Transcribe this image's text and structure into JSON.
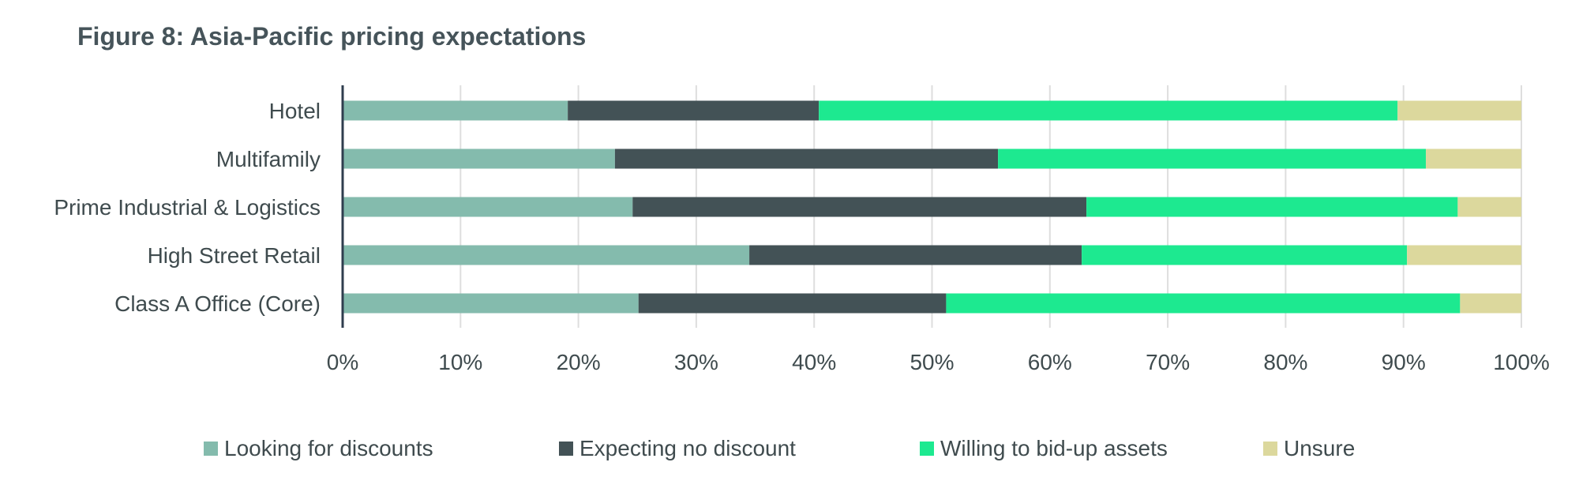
{
  "chart_data": {
    "type": "bar",
    "orientation": "horizontal",
    "stacked": "percent",
    "title": "Figure 8: Asia-Pacific pricing expectations",
    "categories": [
      "Hotel",
      "Multifamily",
      "Prime Industrial & Logistics",
      "High Street Retail",
      "Class A Office (Core)"
    ],
    "series": [
      {
        "name": "Looking for discounts",
        "color": "#84bbad",
        "values": [
          19.1,
          23.1,
          24.6,
          34.5,
          25.1
        ]
      },
      {
        "name": "Expecting no discount",
        "color": "#435256",
        "values": [
          21.3,
          32.5,
          38.5,
          28.2,
          26.1
        ]
      },
      {
        "name": "Willing to bid-up assets",
        "color": "#1de990",
        "values": [
          49.1,
          36.3,
          31.5,
          27.6,
          43.6
        ]
      },
      {
        "name": "Unsure",
        "color": "#dcd89d",
        "values": [
          10.5,
          8.1,
          5.4,
          9.7,
          5.2
        ]
      }
    ],
    "xlim": [
      0,
      100
    ],
    "x_ticks": [
      "0%",
      "10%",
      "20%",
      "30%",
      "40%",
      "50%",
      "60%",
      "70%",
      "80%",
      "90%",
      "100%"
    ],
    "xlabel": "",
    "ylabel": "",
    "grid": "vertical",
    "legend_position": "bottom"
  }
}
